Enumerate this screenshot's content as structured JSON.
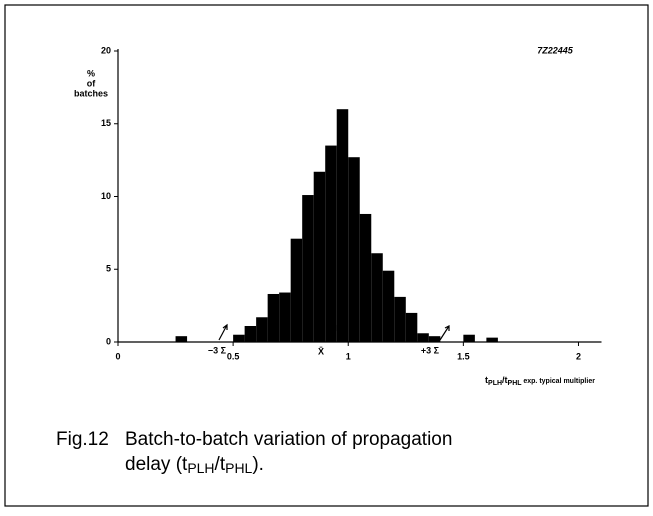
{
  "chart_data": {
    "type": "histogram",
    "code": "7Z22445",
    "y_label": [
      "%",
      "of",
      "batches"
    ],
    "x_label": {
      "main": "t",
      "sub1": "PLH",
      "mid": "/t",
      "sub2": "PHL",
      "rest": " exp. typical multiplier"
    },
    "annotations": [
      "−3 Σ",
      "X̄",
      "+3 Σ"
    ],
    "bins": [
      0.25,
      0.3,
      0.35,
      0.4,
      0.45,
      0.5,
      0.55,
      0.6,
      0.65,
      0.7,
      0.75,
      0.8,
      0.85,
      0.9,
      0.95,
      1.0,
      1.05,
      1.1,
      1.15,
      1.2,
      1.25,
      1.3,
      1.35,
      1.4,
      1.45,
      1.5,
      1.55,
      1.6,
      1.65
    ],
    "values": [
      0.4,
      0,
      0,
      0,
      0,
      0.5,
      1.1,
      1.7,
      3.3,
      3.4,
      7.1,
      10.1,
      11.7,
      13.5,
      16,
      12.7,
      8.8,
      6.1,
      4.9,
      3.1,
      2.0,
      0.6,
      0.4,
      0,
      0,
      0.5,
      0,
      0.3
    ],
    "color": "#000000",
    "xlim": [
      0,
      2.1
    ],
    "ylim": [
      0,
      20
    ],
    "xticks": [
      0,
      0.5,
      1,
      1.5,
      2
    ],
    "yticks": [
      0,
      5,
      10,
      15,
      20
    ],
    "caption": {
      "fig": "Fig.12",
      "line1": "Batch-to-batch variation of propagation",
      "line2a": "delay (t",
      "sub1": "PLH",
      "line2b": "/t",
      "sub2": "PHL",
      "line2c": ")."
    }
  }
}
